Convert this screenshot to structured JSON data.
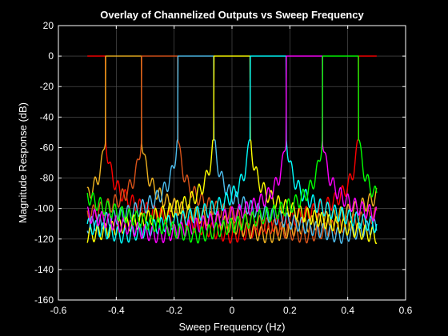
{
  "chart_data": {
    "type": "line",
    "title": "Overlay of Channelized Outputs vs Sweep Frequency",
    "xlabel": "Sweep Frequency (Hz)",
    "ylabel": "Magnitude Response (dB)",
    "xlim": [
      -0.6,
      0.6
    ],
    "ylim": [
      -160,
      20
    ],
    "xticks": [
      -0.6,
      -0.4,
      -0.2,
      0,
      0.2,
      0.4,
      0.6
    ],
    "xtick_labels": [
      "-0.6",
      "-0.4",
      "-0.2",
      "0",
      "0.2",
      "0.4",
      "0.6"
    ],
    "yticks": [
      -160,
      -140,
      -120,
      -100,
      -80,
      -60,
      -40,
      -20,
      0,
      20
    ],
    "ytick_labels": [
      "-160",
      "-140",
      "-120",
      "-100",
      "-80",
      "-60",
      "-40",
      "-20",
      "0",
      "20"
    ],
    "grid": true,
    "background": "#000000",
    "axis_color": "#ffffff",
    "grid_color": "#5a5a5a",
    "sweep_range": [
      -0.5,
      0.5
    ],
    "channel_bandwidth": 0.125,
    "passband_level_db": 0,
    "series": [
      {
        "center": -0.5,
        "color": "#ff0000"
      },
      {
        "center": -0.375,
        "color": "#edb120"
      },
      {
        "center": -0.25,
        "color": "#d95319"
      },
      {
        "center": -0.125,
        "color": "#4dbeee"
      },
      {
        "center": 0,
        "color": "#ffff00"
      },
      {
        "center": 0.125,
        "color": "#00ffff"
      },
      {
        "center": 0.25,
        "color": "#ff00ff"
      },
      {
        "center": 0.375,
        "color": "#00ff00"
      }
    ]
  }
}
